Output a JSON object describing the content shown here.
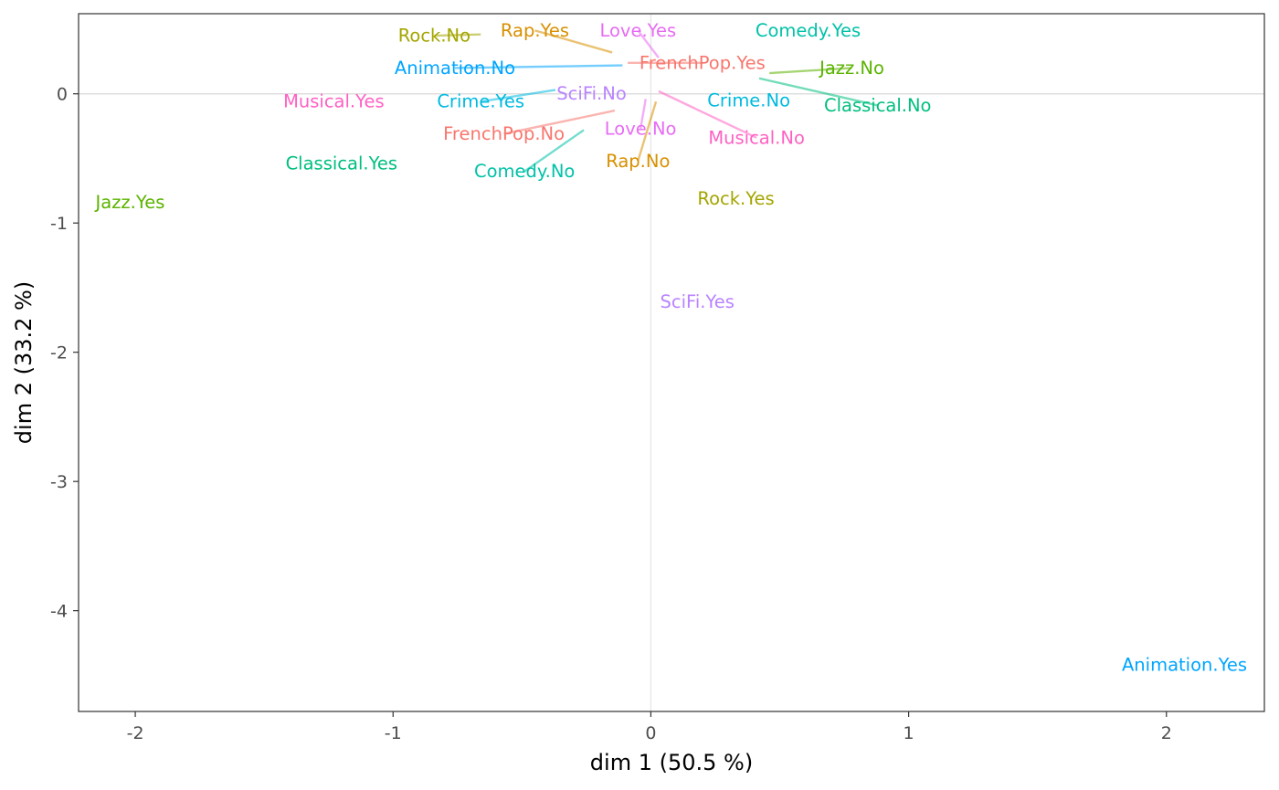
{
  "chart_data": {
    "type": "scatter",
    "xlabel": "dim 1 (50.5 %)",
    "ylabel": "dim 2 (33.2 %)",
    "xlim": [
      -2.22,
      2.38
    ],
    "ylim": [
      -4.78,
      0.62
    ],
    "x_ticks": [
      -2,
      -1,
      0,
      1,
      2
    ],
    "y_ticks": [
      0,
      -1,
      -2,
      -3,
      -4
    ],
    "grid": false,
    "zero_lines": true,
    "legend": "none",
    "points": [
      {
        "label": "Rock.No",
        "x": -0.66,
        "y": 0.46,
        "lx": -0.84,
        "ly": 0.45,
        "color": "#A3A500"
      },
      {
        "label": "Rap.Yes",
        "x": -0.15,
        "y": 0.32,
        "lx": -0.45,
        "ly": 0.49,
        "color": "#D89000"
      },
      {
        "label": "Love.Yes",
        "x": 0.03,
        "y": 0.28,
        "lx": -0.05,
        "ly": 0.49,
        "color": "#E76BF3"
      },
      {
        "label": "Comedy.Yes",
        "x": 0.65,
        "y": 0.49,
        "lx": 0.61,
        "ly": 0.49,
        "color": "#00C1A7"
      },
      {
        "label": "FrenchPop.Yes",
        "x": -0.09,
        "y": 0.24,
        "lx": 0.2,
        "ly": 0.24,
        "color": "#F8766D"
      },
      {
        "label": "Jazz.No",
        "x": 0.46,
        "y": 0.16,
        "lx": 0.78,
        "ly": 0.2,
        "color": "#5BB300"
      },
      {
        "label": "Animation.No",
        "x": -0.11,
        "y": 0.22,
        "lx": -0.76,
        "ly": 0.2,
        "color": "#00A5FF"
      },
      {
        "label": "Musical.Yes",
        "x": -1.23,
        "y": -0.06,
        "lx": -1.23,
        "ly": -0.06,
        "color": "#FF61C3"
      },
      {
        "label": "Crime.Yes",
        "x": -0.37,
        "y": 0.03,
        "lx": -0.66,
        "ly": -0.06,
        "color": "#00BAE0"
      },
      {
        "label": "SciFi.No",
        "x": -0.23,
        "y": 0.0,
        "lx": -0.23,
        "ly": 0.0,
        "color": "#B983FF"
      },
      {
        "label": "Crime.No",
        "x": 0.38,
        "y": -0.05,
        "lx": 0.38,
        "ly": -0.05,
        "color": "#00BAE0"
      },
      {
        "label": "Classical.No",
        "x": 0.42,
        "y": 0.12,
        "lx": 0.88,
        "ly": -0.09,
        "color": "#00BF7D"
      },
      {
        "label": "FrenchPop.No",
        "x": -0.14,
        "y": -0.13,
        "lx": -0.57,
        "ly": -0.31,
        "color": "#F8766D"
      },
      {
        "label": "Love.No",
        "x": -0.02,
        "y": -0.04,
        "lx": -0.04,
        "ly": -0.27,
        "color": "#E76BF3"
      },
      {
        "label": "Musical.No",
        "x": 0.03,
        "y": 0.02,
        "lx": 0.41,
        "ly": -0.34,
        "color": "#FF61C3"
      },
      {
        "label": "Classical.Yes",
        "x": -1.2,
        "y": -0.54,
        "lx": -1.2,
        "ly": -0.54,
        "color": "#00BF7D"
      },
      {
        "label": "Comedy.No",
        "x": -0.26,
        "y": -0.28,
        "lx": -0.49,
        "ly": -0.6,
        "color": "#00C1A7"
      },
      {
        "label": "Rap.No",
        "x": 0.02,
        "y": -0.06,
        "lx": -0.05,
        "ly": -0.52,
        "color": "#D89000"
      },
      {
        "label": "Rock.Yes",
        "x": 0.33,
        "y": -0.81,
        "lx": 0.33,
        "ly": -0.81,
        "color": "#A3A500"
      },
      {
        "label": "Jazz.Yes",
        "x": -2.02,
        "y": -0.84,
        "lx": -2.02,
        "ly": -0.84,
        "color": "#5BB300"
      },
      {
        "label": "SciFi.Yes",
        "x": 0.18,
        "y": -1.61,
        "lx": 0.18,
        "ly": -1.61,
        "color": "#B983FF"
      },
      {
        "label": "Animation.Yes",
        "x": 2.07,
        "y": -4.42,
        "lx": 2.07,
        "ly": -4.42,
        "color": "#00A5FF"
      }
    ]
  }
}
